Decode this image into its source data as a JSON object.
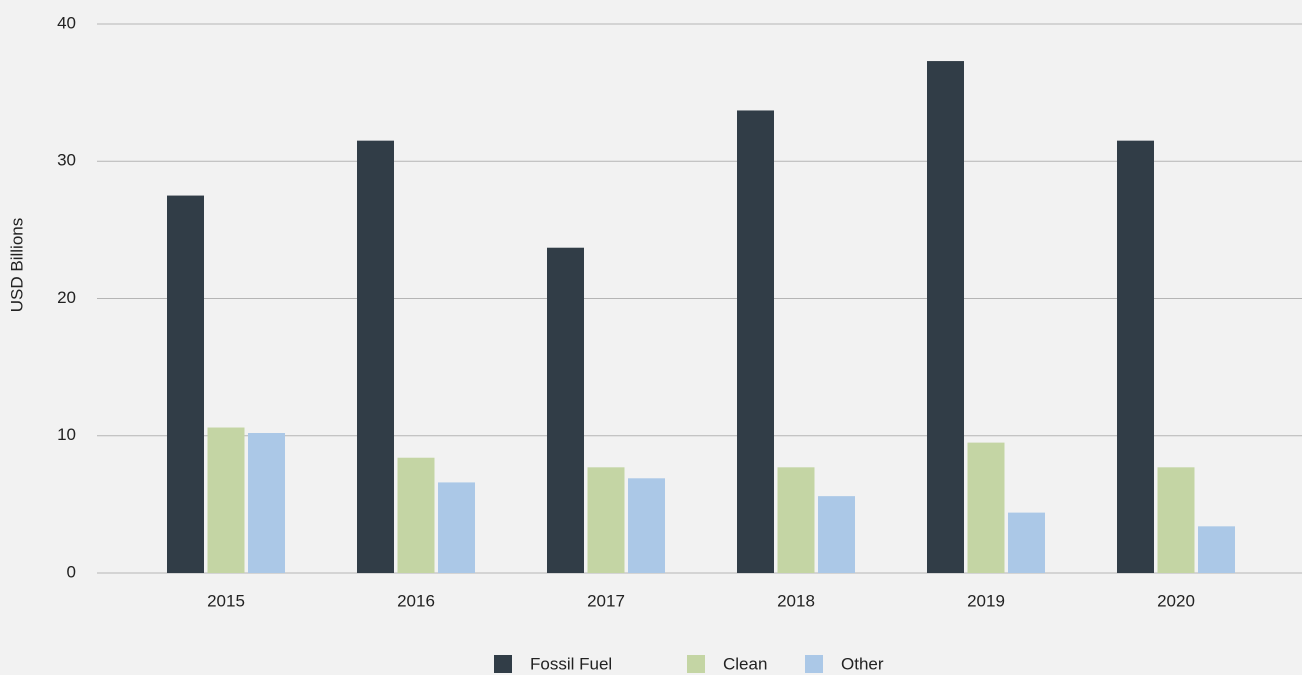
{
  "chart_data": {
    "type": "bar",
    "y_label": "USD Billions",
    "categories": [
      "2015",
      "2016",
      "2017",
      "2018",
      "2019",
      "2020"
    ],
    "series": [
      {
        "name": "Fossil Fuel",
        "color": "#313d47",
        "values": [
          27.5,
          31.5,
          23.7,
          33.7,
          37.3,
          31.5
        ]
      },
      {
        "name": "Clean",
        "color": "#c4d5a4",
        "values": [
          10.6,
          8.4,
          7.7,
          7.7,
          9.5,
          7.7
        ]
      },
      {
        "name": "Other",
        "color": "#abc8e7",
        "values": [
          10.2,
          6.6,
          6.9,
          5.6,
          4.4,
          3.4
        ]
      }
    ],
    "ylim": [
      0,
      40
    ],
    "yticks": [
      0,
      10,
      20,
      30,
      40
    ],
    "grid": true,
    "legend": "bottom"
  }
}
